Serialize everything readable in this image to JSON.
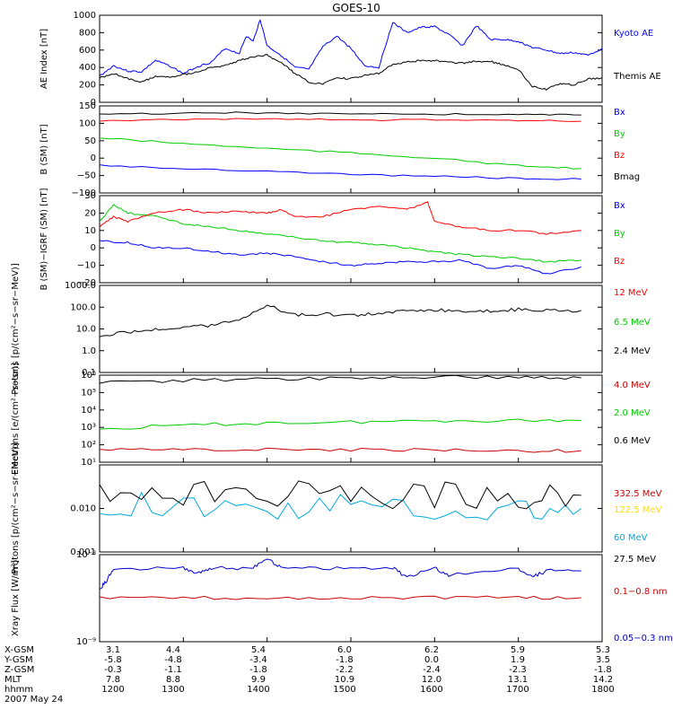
{
  "title": "GOES-10",
  "x_time_range": [
    1200,
    1800
  ],
  "data_end_time": 1745,
  "ephemeris": {
    "rows": [
      {
        "label": "X-GSM",
        "values": [
          "3.1",
          "4.4",
          "5.4",
          "6.0",
          "6.2",
          "5.9",
          "5.3"
        ]
      },
      {
        "label": "Y-GSM",
        "values": [
          "-5.8",
          "-4.8",
          "-3.4",
          "-1.8",
          "0.0",
          "1.9",
          "3.5"
        ]
      },
      {
        "label": "Z-GSM",
        "values": [
          "-0.3",
          "-1.1",
          "-1.8",
          "-2.2",
          "-2.4",
          "-2.3",
          "-1.8"
        ]
      },
      {
        "label": "MLT",
        "values": [
          "7.8",
          "8.8",
          "9.9",
          "10.9",
          "12.0",
          "13.1",
          "14.2"
        ]
      },
      {
        "label": "hhmm",
        "values": [
          "1200",
          "1300",
          "1400",
          "1500",
          "1600",
          "1700",
          "1800"
        ]
      }
    ],
    "date": "2007 May 24"
  },
  "chart_data": [
    {
      "type": "line",
      "ylabel": "AE Index [nT]",
      "ylim": [
        0,
        1000
      ],
      "ticks": [
        {
          "v": 0,
          "t": "0"
        },
        {
          "v": 200,
          "t": "200"
        },
        {
          "v": 400,
          "t": "400"
        },
        {
          "v": 600,
          "t": "600"
        },
        {
          "v": 800,
          "t": "800"
        },
        {
          "v": 1000,
          "t": "1000"
        }
      ],
      "series": [
        {
          "name": "Kyoto AE",
          "color": "#0000ff",
          "x": [
            1200,
            1210,
            1220,
            1230,
            1240,
            1250,
            1300,
            1310,
            1320,
            1330,
            1340,
            1345,
            1350,
            1355,
            1400,
            1410,
            1420,
            1430,
            1440,
            1450,
            1500,
            1510,
            1520,
            1530,
            1540,
            1550,
            1600,
            1610,
            1620,
            1630,
            1640,
            1650,
            1700,
            1710,
            1720,
            1730,
            1740,
            1750,
            1800
          ],
          "values": [
            300,
            420,
            360,
            350,
            480,
            420,
            330,
            410,
            460,
            620,
            560,
            760,
            700,
            950,
            650,
            540,
            400,
            380,
            640,
            760,
            620,
            420,
            400,
            920,
            800,
            860,
            870,
            780,
            650,
            880,
            720,
            720,
            700,
            630,
            600,
            560,
            570,
            540,
            620
          ]
        },
        {
          "name": "Themis AE",
          "color": "#000000",
          "x": [
            1200,
            1210,
            1220,
            1230,
            1240,
            1250,
            1300,
            1310,
            1320,
            1330,
            1340,
            1350,
            1400,
            1410,
            1420,
            1430,
            1440,
            1450,
            1500,
            1510,
            1520,
            1530,
            1540,
            1550,
            1600,
            1610,
            1620,
            1630,
            1640,
            1650,
            1700,
            1710,
            1720,
            1730,
            1740,
            1750,
            1800
          ],
          "values": [
            280,
            330,
            270,
            230,
            300,
            290,
            320,
            350,
            400,
            420,
            480,
            520,
            540,
            460,
            330,
            230,
            210,
            280,
            270,
            310,
            330,
            440,
            460,
            480,
            480,
            460,
            450,
            470,
            470,
            430,
            380,
            180,
            150,
            220,
            200,
            270,
            280
          ]
        }
      ]
    },
    {
      "type": "line",
      "ylabel": "B (SM) [nT]",
      "ylim": [
        -100,
        150
      ],
      "ticks": [
        {
          "v": -100,
          "t": "−100"
        },
        {
          "v": -50,
          "t": "−50"
        },
        {
          "v": 0,
          "t": "0"
        },
        {
          "v": 50,
          "t": "50"
        },
        {
          "v": 100,
          "t": "100"
        },
        {
          "v": 150,
          "t": "150"
        }
      ],
      "series": [
        {
          "name": "Bx",
          "color": "#0000ff",
          "x": [
            1200,
            1300,
            1400,
            1500,
            1600,
            1700,
            1745
          ],
          "values": [
            -20,
            -30,
            -38,
            -46,
            -52,
            -58,
            -60
          ]
        },
        {
          "name": "By",
          "color": "#00cc00",
          "x": [
            1200,
            1300,
            1400,
            1500,
            1600,
            1700,
            1745
          ],
          "values": [
            58,
            42,
            28,
            15,
            0,
            -22,
            -30
          ]
        },
        {
          "name": "Bz",
          "color": "#ff0000",
          "x": [
            1200,
            1300,
            1400,
            1500,
            1600,
            1700,
            1745
          ],
          "values": [
            108,
            112,
            113,
            110,
            110,
            108,
            106
          ]
        },
        {
          "name": "Bmag",
          "color": "#000000",
          "x": [
            1200,
            1300,
            1400,
            1500,
            1600,
            1700,
            1745
          ],
          "values": [
            125,
            130,
            130,
            128,
            126,
            125,
            124
          ]
        }
      ]
    },
    {
      "type": "line",
      "ylabel": "B (SM)−IGRF (SM) [nT]",
      "ylim": [
        -20,
        30
      ],
      "ticks": [
        {
          "v": -20,
          "t": "−20"
        },
        {
          "v": -10,
          "t": "−10"
        },
        {
          "v": 0,
          "t": "0"
        },
        {
          "v": 10,
          "t": "10"
        },
        {
          "v": 20,
          "t": "20"
        },
        {
          "v": 30,
          "t": "30"
        }
      ],
      "series": [
        {
          "name": "Bx",
          "color": "#0000ff",
          "x": [
            1200,
            1220,
            1240,
            1300,
            1320,
            1340,
            1400,
            1420,
            1440,
            1500,
            1520,
            1540,
            1600,
            1620,
            1640,
            1700,
            1720,
            1745
          ],
          "values": [
            4,
            3,
            0,
            0,
            -2,
            -4,
            -3,
            -5,
            -8,
            -10,
            -9,
            -8,
            -8,
            -7,
            -12,
            -10,
            -15,
            -11
          ]
        },
        {
          "name": "By",
          "color": "#00cc00",
          "x": [
            1200,
            1210,
            1220,
            1240,
            1300,
            1320,
            1340,
            1400,
            1420,
            1440,
            1500,
            1520,
            1540,
            1600,
            1620,
            1640,
            1700,
            1720,
            1745
          ],
          "values": [
            15,
            25,
            20,
            18,
            14,
            12,
            10,
            8,
            6,
            4,
            3,
            2,
            0,
            -2,
            -4,
            -5,
            -6,
            -8,
            -7
          ]
        },
        {
          "name": "Bz",
          "color": "#ff0000",
          "x": [
            1200,
            1210,
            1220,
            1240,
            1300,
            1320,
            1340,
            1400,
            1410,
            1420,
            1440,
            1500,
            1520,
            1540,
            1555,
            1600,
            1620,
            1640,
            1700,
            1720,
            1745
          ],
          "values": [
            12,
            18,
            15,
            20,
            22,
            20,
            21,
            20,
            22,
            18,
            18,
            22,
            24,
            22,
            26,
            15,
            12,
            10,
            10,
            8,
            10
          ]
        }
      ]
    },
    {
      "type": "line",
      "ylabel": "Protons [p/(cm²−s−sr−MeV)]",
      "log": true,
      "ylim": [
        0.1,
        1000
      ],
      "ticks": [
        {
          "v": 0.1,
          "t": "0.1"
        },
        {
          "v": 1,
          "t": "1.0"
        },
        {
          "v": 10,
          "t": "10.0"
        },
        {
          "v": 100,
          "t": "100.0"
        },
        {
          "v": 1000,
          "t": "1000.0"
        }
      ],
      "series": [
        {
          "name": "12 MeV",
          "color": "#ff0000",
          "x": [],
          "values": []
        },
        {
          "name": "6.5 MeV",
          "color": "#00cc00",
          "x": [],
          "values": []
        },
        {
          "name": "2.4 MeV",
          "color": "#000000",
          "x": [
            1200,
            1220,
            1240,
            1300,
            1320,
            1340,
            1400,
            1420,
            1440,
            1500,
            1520,
            1540,
            1600,
            1620,
            1640,
            1700,
            1720,
            1745
          ],
          "values": [
            5,
            7,
            9,
            12,
            15,
            25,
            120,
            45,
            50,
            40,
            55,
            70,
            75,
            70,
            68,
            80,
            75,
            70
          ]
        }
      ]
    },
    {
      "type": "line",
      "ylabel": "Electrons [e/(cm²−s−sr)]",
      "log": true,
      "ylim": [
        10,
        1000000
      ],
      "ticks": [
        {
          "v": 10,
          "t": "10¹"
        },
        {
          "v": 100,
          "t": "10²"
        },
        {
          "v": 1000,
          "t": "10³"
        },
        {
          "v": 10000,
          "t": "10⁴"
        },
        {
          "v": 100000,
          "t": "10⁵"
        },
        {
          "v": 1000000,
          "t": "10⁶"
        }
      ],
      "series": [
        {
          "name": "4.0 MeV",
          "color": "#cc0000",
          "x": [
            1200,
            1300,
            1400,
            1500,
            1600,
            1700,
            1745
          ],
          "values": [
            50,
            55,
            55,
            50,
            50,
            45,
            45
          ]
        },
        {
          "name": "2.0 MeV",
          "color": "#00cc00",
          "x": [
            1200,
            1300,
            1400,
            1500,
            1600,
            1700,
            1745
          ],
          "values": [
            800,
            1300,
            1800,
            2000,
            2500,
            2500,
            2500
          ]
        },
        {
          "name": "0.6 MeV",
          "color": "#000000",
          "x": [
            1200,
            1300,
            1400,
            1500,
            1600,
            1700,
            1745
          ],
          "values": [
            400000,
            500000,
            600000,
            700000,
            800000,
            800000,
            700000
          ]
        }
      ]
    },
    {
      "type": "line",
      "ylabel": "Protons [p/(cm²−s−sr−MeV)]",
      "log": true,
      "ylim": [
        0.001,
        0.1
      ],
      "ticks": [
        {
          "v": 0.001,
          "t": "0.001"
        },
        {
          "v": 0.01,
          "t": "0.010"
        }
      ],
      "series": [
        {
          "name": "332.5 MeV",
          "color": "#cc0000",
          "x": [],
          "values": []
        },
        {
          "name": "122.5 MeV",
          "color": "#ffdd00",
          "x": [],
          "values": []
        },
        {
          "name": "60 MeV",
          "color": "#00aadd",
          "x": [
            1200,
            1300,
            1400,
            1500,
            1600,
            1700,
            1745
          ],
          "values": [
            0.012,
            0.012,
            0.011,
            0.011,
            0.01,
            0.01,
            0.01
          ]
        },
        {
          "name": "27.5 MeV",
          "color": "#000000",
          "x": [
            1200,
            1300,
            1400,
            1500,
            1600,
            1700,
            1745
          ],
          "values": [
            0.02,
            0.02,
            0.022,
            0.02,
            0.02,
            0.02,
            0.02
          ]
        }
      ]
    },
    {
      "type": "line",
      "ylabel": "Xray Flux [W/m²]",
      "log": true,
      "ylim": [
        1e-09,
        1e-08
      ],
      "ticks": [
        {
          "v": 1e-09,
          "t": "10⁻⁹"
        },
        {
          "v": 1e-08,
          "t": "10⁻⁸"
        }
      ],
      "series": [
        {
          "name": "0.1−0.8 nm",
          "color": "#cc0000",
          "x": [
            1200,
            1300,
            1400,
            1500,
            1600,
            1700,
            1745
          ],
          "values": [
            3.2e-09,
            3.2e-09,
            3.2e-09,
            3.2e-09,
            3.2e-09,
            3.2e-09,
            3.2e-09
          ]
        },
        {
          "name": "0.05−0.3 nm",
          "color": "#0000cc",
          "x": [
            1200,
            1205,
            1210,
            1300,
            1310,
            1320,
            1350,
            1400,
            1410,
            1450,
            1530,
            1540,
            1600,
            1610,
            1700,
            1710,
            1720,
            1745
          ],
          "values": [
            4e-09,
            5e-09,
            7e-09,
            7e-09,
            6e-09,
            7e-09,
            7e-09,
            9e-09,
            7e-09,
            7e-09,
            7e-09,
            5.5e-09,
            7e-09,
            5.8e-09,
            7e-09,
            5.5e-09,
            6.5e-09,
            6.5e-09
          ]
        }
      ]
    }
  ]
}
